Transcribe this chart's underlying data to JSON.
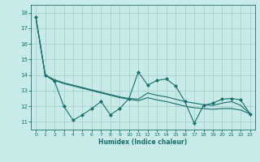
{
  "xlabel": "Humidex (Indice chaleur)",
  "background_color": "#c8eae8",
  "grid_color": "#a8cece",
  "line_color": "#1a6e6a",
  "xlim": [
    -0.5,
    23.5
  ],
  "ylim": [
    10.5,
    18.5
  ],
  "yticks": [
    11,
    12,
    13,
    14,
    15,
    16,
    17,
    18
  ],
  "xticks": [
    0,
    1,
    2,
    3,
    4,
    5,
    6,
    7,
    8,
    9,
    10,
    11,
    12,
    13,
    14,
    15,
    16,
    17,
    18,
    19,
    20,
    21,
    22,
    23
  ],
  "line1_x": [
    0,
    1,
    2,
    3,
    4,
    5,
    6,
    7,
    8,
    9,
    10,
    11,
    12,
    13,
    14,
    15,
    16,
    17,
    18,
    19,
    20,
    21,
    22,
    23
  ],
  "line1_y": [
    17.7,
    14.0,
    13.6,
    12.0,
    11.1,
    11.45,
    11.85,
    12.3,
    11.45,
    11.85,
    12.5,
    14.2,
    13.35,
    13.65,
    13.75,
    13.3,
    12.3,
    10.9,
    12.05,
    12.2,
    12.45,
    12.5,
    12.4,
    11.5
  ],
  "line2_x": [
    0,
    1,
    2,
    3,
    4,
    5,
    6,
    7,
    8,
    9,
    10,
    11,
    12,
    13,
    14,
    15,
    16,
    17,
    18,
    19,
    20,
    21,
    22,
    23
  ],
  "line2_y": [
    17.7,
    14.0,
    13.7,
    13.5,
    13.35,
    13.2,
    13.05,
    12.9,
    12.75,
    12.6,
    12.5,
    12.45,
    12.85,
    12.7,
    12.6,
    12.45,
    12.3,
    12.2,
    12.1,
    12.05,
    12.2,
    12.3,
    12.05,
    11.5
  ],
  "line3_x": [
    0,
    1,
    2,
    3,
    4,
    5,
    6,
    7,
    8,
    9,
    10,
    11,
    12,
    13,
    14,
    15,
    16,
    17,
    18,
    19,
    20,
    21,
    22,
    23
  ],
  "line3_y": [
    17.7,
    14.0,
    13.65,
    13.45,
    13.3,
    13.15,
    13.0,
    12.85,
    12.7,
    12.55,
    12.45,
    12.35,
    12.55,
    12.4,
    12.3,
    12.15,
    12.0,
    11.9,
    11.85,
    11.8,
    11.85,
    11.85,
    11.75,
    11.5
  ]
}
